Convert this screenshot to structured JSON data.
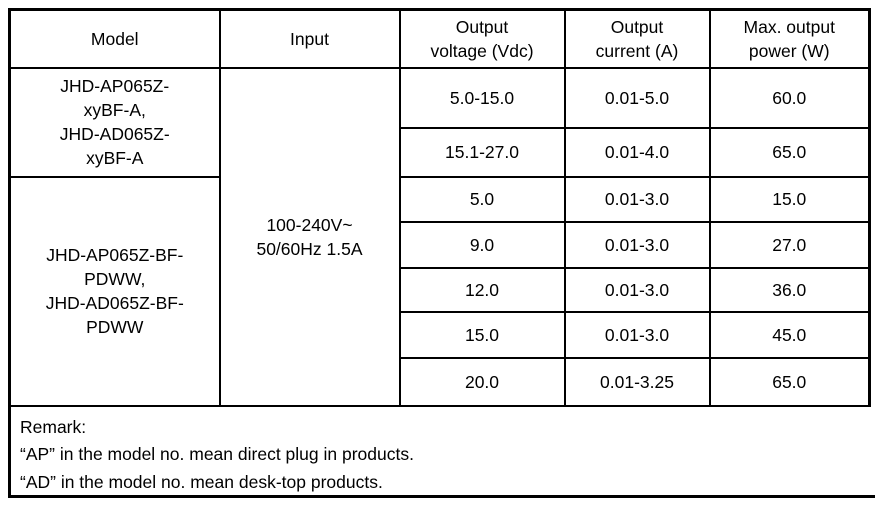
{
  "page": {
    "background": "#ffffff",
    "border_color": "#000000",
    "text_color": "#000000"
  },
  "table": {
    "headers": {
      "model": "Model",
      "input": "Input",
      "output_voltage": "Output\nvoltage (Vdc)",
      "output_current": "Output\ncurrent (A)",
      "max_power": "Max. output\npower (W)"
    },
    "model_groups": [
      {
        "label": "JHD-AP065Z-\nxyBF-A,\nJHD-AD065Z-\nxyBF-A"
      },
      {
        "label": "JHD-AP065Z-BF-\nPDWW,\nJHD-AD065Z-BF-\nPDWW"
      }
    ],
    "input_value": "100-240V~\n50/60Hz 1.5A",
    "rows": [
      {
        "output_voltage": "5.0-15.0",
        "output_current": "0.01-5.0",
        "max_power": "60.0"
      },
      {
        "output_voltage": "15.1-27.0",
        "output_current": "0.01-4.0",
        "max_power": "65.0"
      },
      {
        "output_voltage": "5.0",
        "output_current": "0.01-3.0",
        "max_power": "15.0"
      },
      {
        "output_voltage": "9.0",
        "output_current": "0.01-3.0",
        "max_power": "27.0"
      },
      {
        "output_voltage": "12.0",
        "output_current": "0.01-3.0",
        "max_power": "36.0"
      },
      {
        "output_voltage": "15.0",
        "output_current": "0.01-3.0",
        "max_power": "45.0"
      },
      {
        "output_voltage": "20.0",
        "output_current": "0.01-3.25",
        "max_power": "65.0"
      }
    ],
    "remark": {
      "title": "Remark:",
      "lines": [
        "“AP” in the model no. mean direct plug in products.",
        "“AD” in the model no. mean desk-top products."
      ]
    }
  }
}
